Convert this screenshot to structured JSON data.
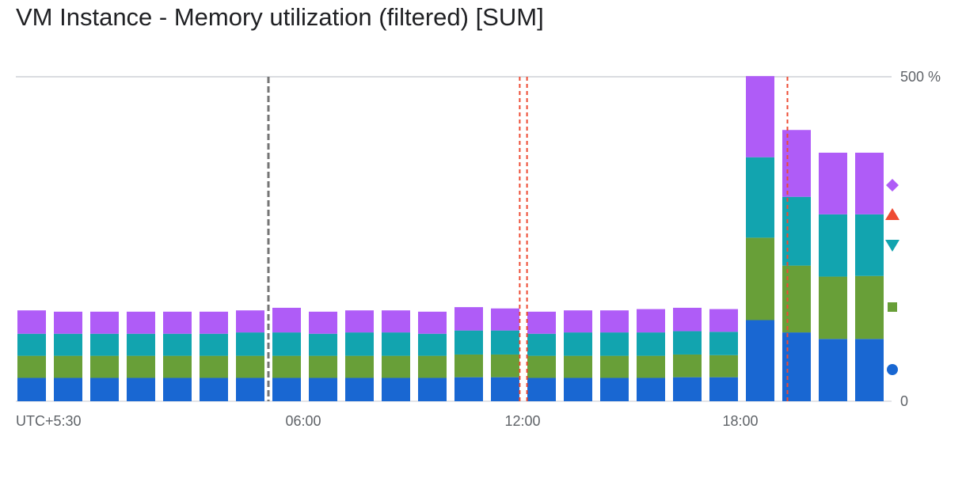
{
  "title": "VM Instance - Memory utilization (filtered) [SUM]",
  "chart_data": {
    "type": "bar",
    "stacked": true,
    "x_tick_labels": [
      "UTC+5:30",
      "06:00",
      "12:00",
      "18:00"
    ],
    "y_tick_labels": [
      "500 %",
      "0"
    ],
    "ylim": [
      0,
      500
    ],
    "grid": true,
    "series": [
      {
        "color": "#1967d2",
        "marker": "circle",
        "values": [
          36,
          36,
          36,
          36,
          36,
          36,
          36,
          36,
          36,
          36,
          36,
          36,
          37,
          37,
          36,
          36,
          36,
          36,
          37,
          37,
          125,
          106,
          96,
          96
        ]
      },
      {
        "color": "#689f38",
        "marker": "square",
        "values": [
          34,
          34,
          34,
          34,
          34,
          34,
          34,
          34,
          34,
          34,
          34,
          34,
          35,
          35,
          34,
          34,
          34,
          34,
          35,
          34,
          127,
          103,
          96,
          97
        ]
      },
      {
        "color": "#12a4af",
        "marker": "triangle-down",
        "values": [
          34,
          34,
          34,
          34,
          34,
          34,
          36,
          36,
          34,
          36,
          36,
          34,
          37,
          37,
          34,
          36,
          36,
          36,
          36,
          36,
          124,
          106,
          96,
          95
        ]
      },
      {
        "color": "#ee4b33",
        "marker": "triangle-up",
        "values": [
          0,
          0,
          0,
          0,
          0,
          0,
          0,
          0,
          0,
          0,
          0,
          0,
          0,
          0,
          0,
          0,
          0,
          0,
          0,
          0,
          0,
          0,
          0,
          0
        ]
      },
      {
        "color": "#af5cf7",
        "marker": "diamond",
        "values": [
          36,
          34,
          34,
          34,
          34,
          34,
          34,
          38,
          34,
          34,
          34,
          34,
          36,
          34,
          34,
          34,
          34,
          36,
          36,
          35,
          125,
          103,
          95,
          95
        ]
      }
    ],
    "event_lines": [
      {
        "color": "#757575",
        "style": "dashed",
        "at_bar": 6.5
      },
      {
        "color": "#ee4b33",
        "style": "dashed",
        "at_bar": 13.4
      },
      {
        "color": "#ee4b33",
        "style": "dashed",
        "at_bar": 13.6
      },
      {
        "color": "#ee4b33",
        "style": "dashed",
        "at_bar": 20.75
      }
    ]
  }
}
